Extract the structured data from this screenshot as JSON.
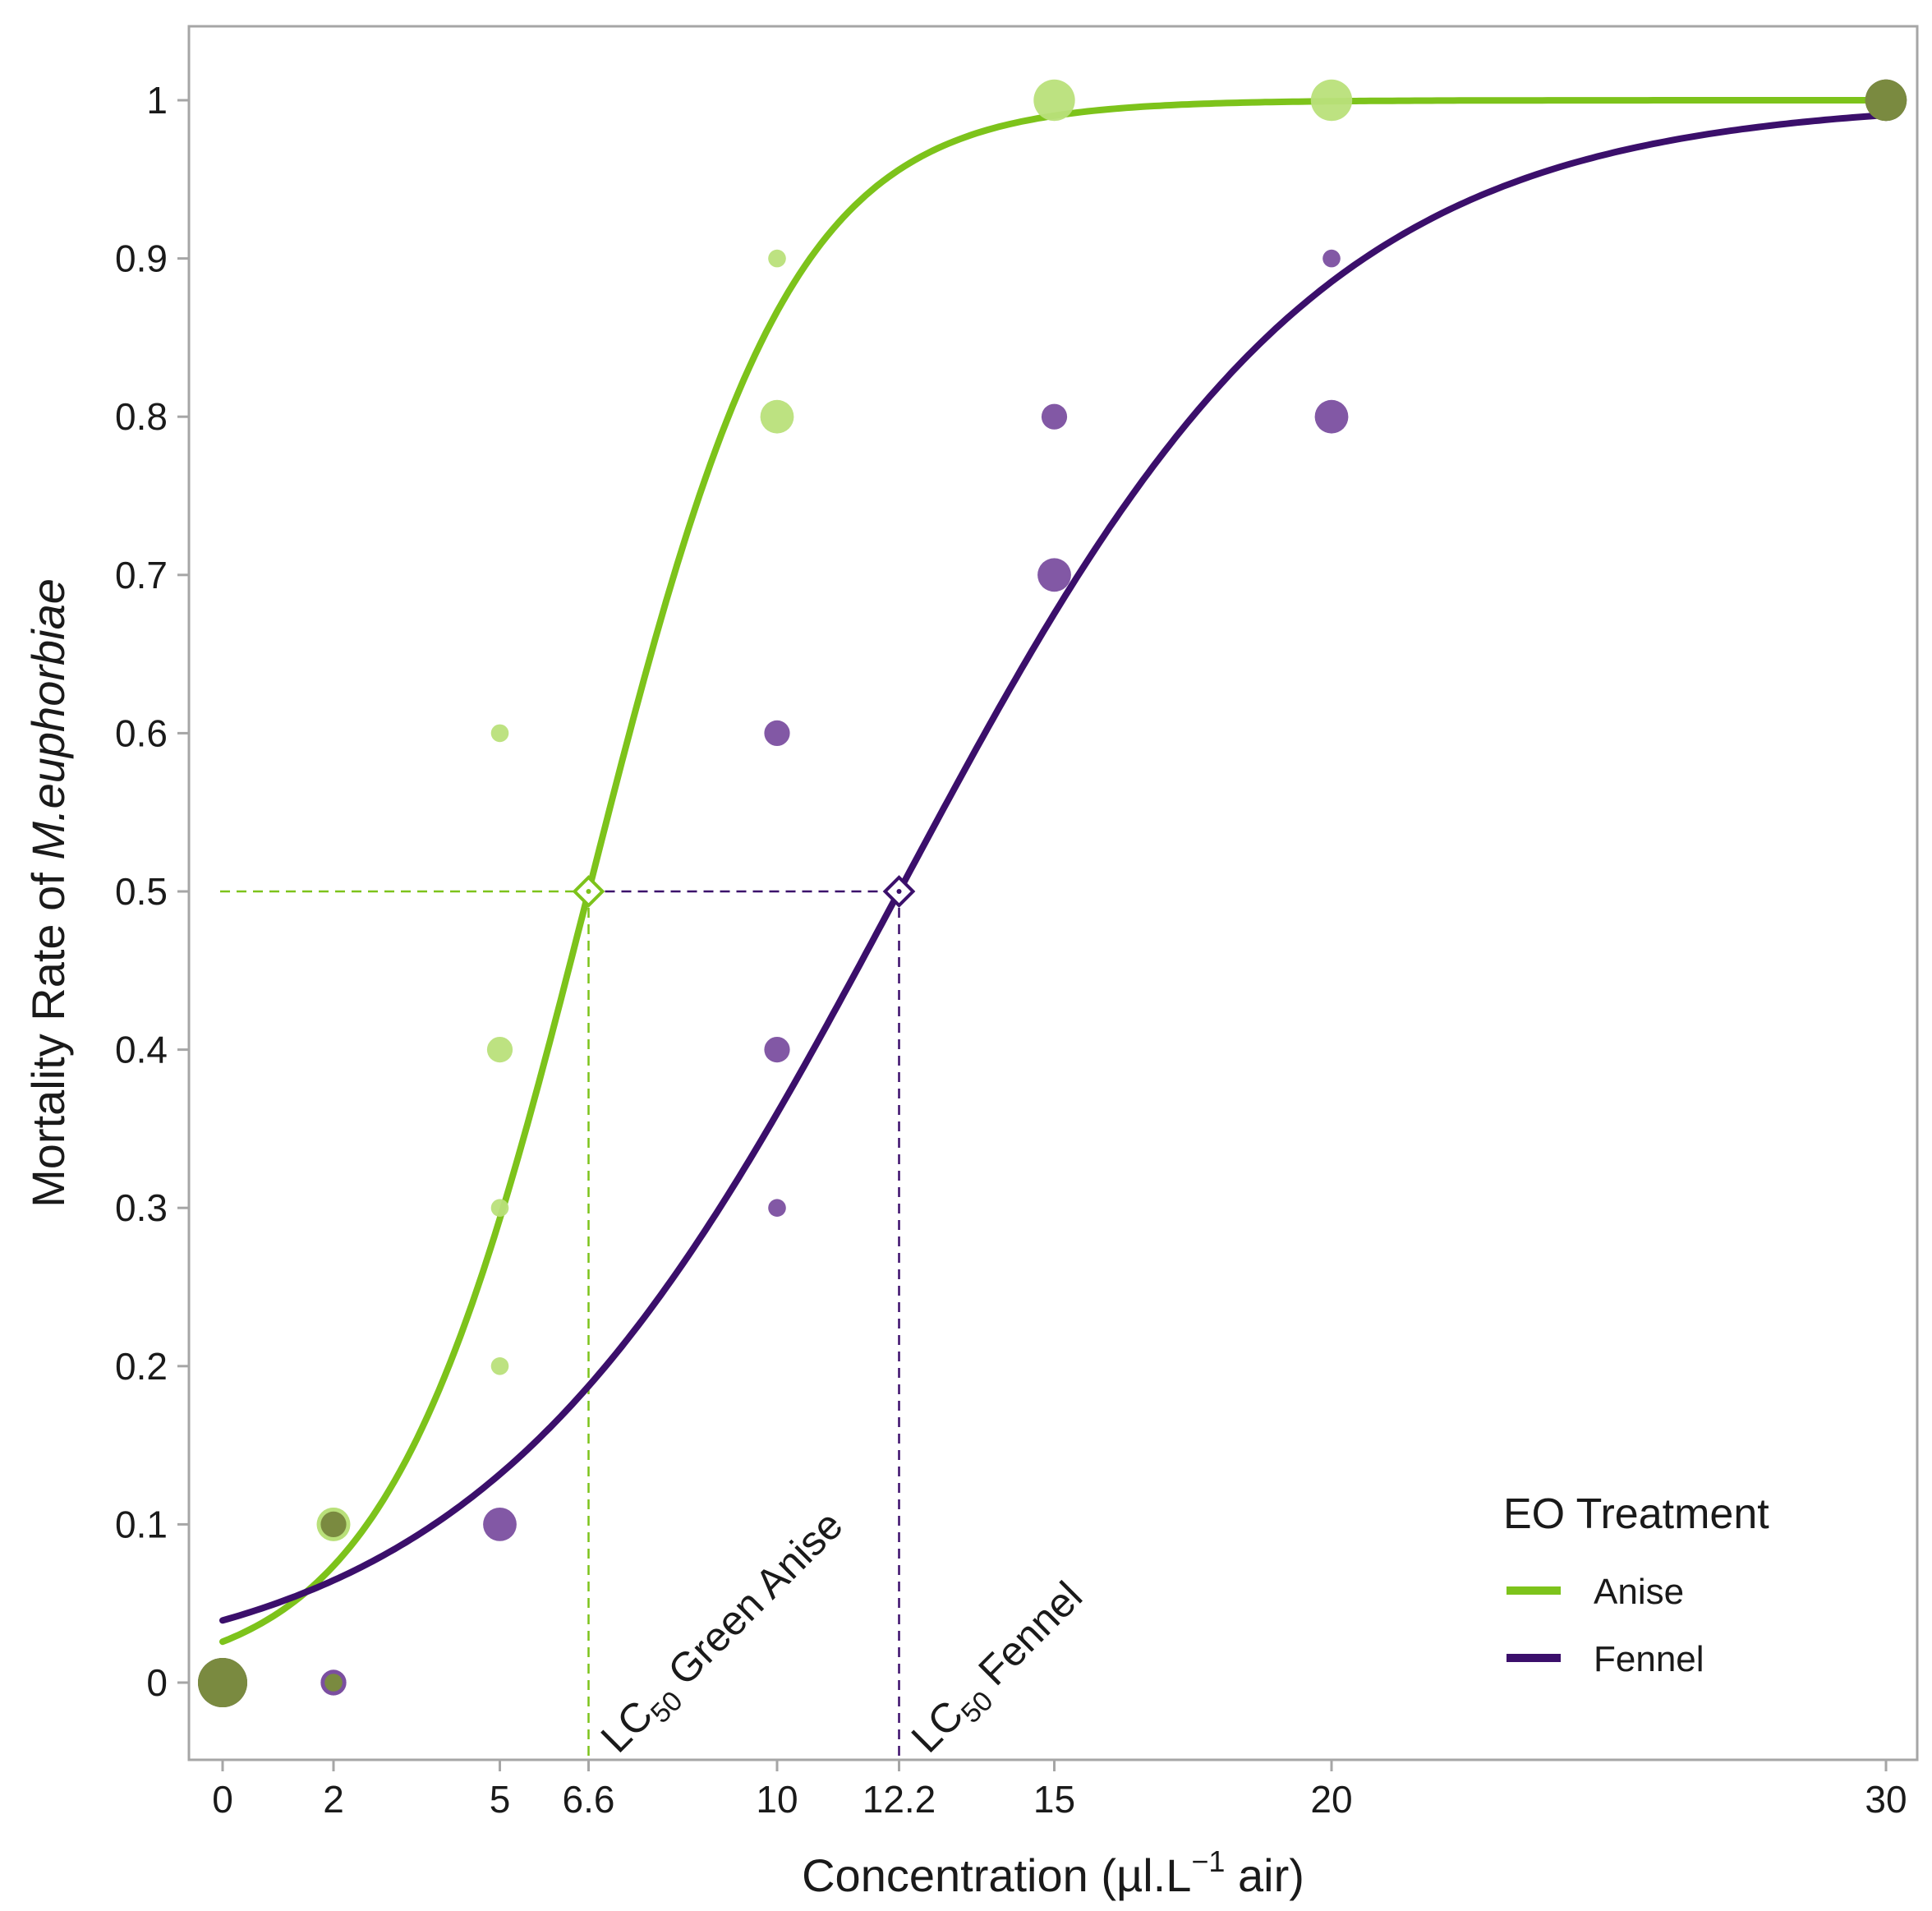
{
  "chart_data": {
    "type": "scatter",
    "title": "",
    "xlabel_pre": "Concentration (µl.L",
    "xlabel_sup": "−1",
    "xlabel_post": " air)",
    "ylabel_pre": "Mortality Rate of ",
    "ylabel_italic": "M.euphorbiae",
    "xlim": [
      -0.6,
      30.6
    ],
    "ylim": [
      -0.05,
      1.05
    ],
    "x_ticks": [
      0,
      2,
      5,
      6.6,
      10,
      12.2,
      15,
      20,
      30
    ],
    "x_tick_labels": [
      "0",
      "2",
      "5",
      "6.6",
      "10",
      "12.2",
      "15",
      "20",
      "30"
    ],
    "y_ticks": [
      0,
      0.1,
      0.2,
      0.3,
      0.4,
      0.5,
      0.6,
      0.7,
      0.8,
      0.9,
      1
    ],
    "y_tick_labels": [
      "0",
      "0.1",
      "0.2",
      "0.3",
      "0.4",
      "0.5",
      "0.6",
      "0.7",
      "0.8",
      "0.9",
      "1"
    ],
    "grid": false,
    "legend": {
      "title": "EO Treatment",
      "position": "bottom-right",
      "entries": [
        {
          "name": "Anise",
          "color": "#7dc31b"
        },
        {
          "name": "Fennel",
          "color": "#3b0f6b"
        }
      ]
    },
    "series": [
      {
        "name": "Anise",
        "color": "#7dc31b",
        "point_color": "#b9e07a",
        "curve": {
          "lc50": 6.6,
          "slope": 0.55,
          "lower": 0.0,
          "upper": 1.0
        },
        "points": [
          {
            "x": 0,
            "y": 0,
            "n": 5
          },
          {
            "x": 2,
            "y": 0.1,
            "n": 3
          },
          {
            "x": 2,
            "y": 0,
            "n": 1
          },
          {
            "x": 5,
            "y": 0.6,
            "n": 1
          },
          {
            "x": 5,
            "y": 0.4,
            "n": 2
          },
          {
            "x": 5,
            "y": 0.3,
            "n": 1
          },
          {
            "x": 5,
            "y": 0.2,
            "n": 1
          },
          {
            "x": 10,
            "y": 0.9,
            "n": 1
          },
          {
            "x": 10,
            "y": 0.8,
            "n": 3
          },
          {
            "x": 15,
            "y": 1,
            "n": 4
          },
          {
            "x": 20,
            "y": 1,
            "n": 4
          },
          {
            "x": 30,
            "y": 1,
            "n": 4
          }
        ]
      },
      {
        "name": "Fennel",
        "color": "#3b0f6b",
        "point_color": "#7b4fa0",
        "curve": {
          "lc50": 12.2,
          "slope": 0.262,
          "lower": 0.0,
          "upper": 1.0
        },
        "points": [
          {
            "x": 0,
            "y": 0,
            "n": 5
          },
          {
            "x": 2,
            "y": 0.1,
            "n": 2
          },
          {
            "x": 2,
            "y": 0,
            "n": 2
          },
          {
            "x": 5,
            "y": 0.1,
            "n": 3
          },
          {
            "x": 10,
            "y": 0.6,
            "n": 2
          },
          {
            "x": 10,
            "y": 0.4,
            "n": 2
          },
          {
            "x": 10,
            "y": 0.3,
            "n": 1
          },
          {
            "x": 15,
            "y": 0.8,
            "n": 2
          },
          {
            "x": 15,
            "y": 0.7,
            "n": 3
          },
          {
            "x": 20,
            "y": 0.9,
            "n": 1
          },
          {
            "x": 20,
            "y": 0.8,
            "n": 3
          },
          {
            "x": 30,
            "y": 1,
            "n": 4
          }
        ]
      }
    ],
    "overlap_color": "#7a8a40",
    "annotations": [
      {
        "series": "Anise",
        "x": 6.6,
        "y": 0.5,
        "label_prefix": "LC",
        "label_sub": "50",
        "label_text": " Green Anise",
        "color": "#7dc31b"
      },
      {
        "series": "Fennel",
        "x": 12.2,
        "y": 0.5,
        "label_prefix": "LC",
        "label_sub": "50",
        "label_text": " Fennel",
        "color": "#3b0f6b"
      }
    ]
  }
}
